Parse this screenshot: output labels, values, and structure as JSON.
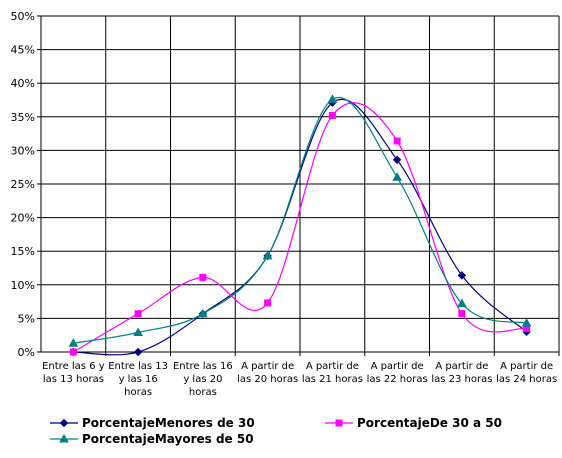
{
  "chart_data": {
    "type": "line",
    "smooth": true,
    "grid": true,
    "legend_placement": "bottom",
    "title": "",
    "xlabel": "",
    "ylabel": "",
    "ylim": [
      0,
      50
    ],
    "y_ticks": [
      "0%",
      "5%",
      "10%",
      "15%",
      "20%",
      "25%",
      "30%",
      "35%",
      "40%",
      "45%",
      "50%"
    ],
    "categories": [
      [
        "Entre las 6 y",
        "las 13 horas"
      ],
      [
        "Entre las 13",
        "y las 16",
        "horas"
      ],
      [
        "Entre las 16",
        "y las 20",
        "horas"
      ],
      [
        "A partir de",
        "las 20 horas"
      ],
      [
        "A partir de",
        "las 21 horas"
      ],
      [
        "A partir de",
        "las 22 horas"
      ],
      [
        "A partir de",
        "las 23 horas"
      ],
      [
        "A partir de",
        "las 24 horas"
      ]
    ],
    "series": [
      {
        "name": "PorcentajeMenores de 30",
        "color": "#000080",
        "marker": "diamond",
        "values": [
          0.0,
          0.0,
          5.7,
          14.3,
          37.1,
          28.6,
          11.4,
          3.0
        ]
      },
      {
        "name": "PorcentajeDe 30 a 50",
        "color": "#ff00ff",
        "marker": "square",
        "values": [
          0.0,
          5.7,
          11.1,
          7.3,
          35.2,
          31.4,
          5.7,
          3.5
        ]
      },
      {
        "name": "PorcentajeMayores de 50",
        "color": "#008080",
        "marker": "triangle",
        "values": [
          1.3,
          2.9,
          5.7,
          14.3,
          37.6,
          26.0,
          7.2,
          4.3
        ]
      }
    ]
  }
}
